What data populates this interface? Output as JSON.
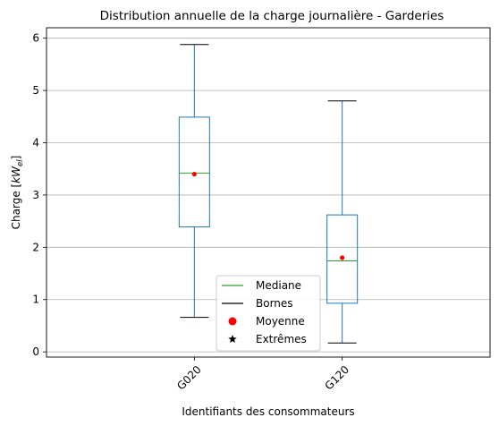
{
  "chart_data": {
    "type": "box",
    "title": "Distribution annuelle de la charge journalière - Garderies",
    "xlabel": "Identifiants des consommateurs",
    "ylabel_prefix": "Charge [",
    "ylabel_var": "kW",
    "ylabel_sub": "el",
    "ylabel_suffix": "]",
    "ylim": [
      -0.1,
      6.2
    ],
    "yticks": [
      0,
      1,
      2,
      3,
      4,
      5,
      6
    ],
    "ytick_labels": [
      "0",
      "1",
      "2",
      "3",
      "4",
      "5",
      "6"
    ],
    "grid": "horizontal",
    "categories": [
      "G020",
      "G120"
    ],
    "boxes": [
      {
        "name": "G020",
        "whislo": 0.66,
        "q1": 2.39,
        "med": 3.42,
        "mean": 3.4,
        "q3": 4.49,
        "whishi": 5.88
      },
      {
        "name": "G120",
        "whislo": 0.17,
        "q1": 0.93,
        "med": 1.74,
        "mean": 1.8,
        "q3": 2.62,
        "whishi": 4.8
      }
    ],
    "legend": {
      "placement": "lower center",
      "entries": [
        {
          "label": "Mediane",
          "marker": "line",
          "color": "#2ca02c"
        },
        {
          "label": "Bornes",
          "marker": "line",
          "color": "#000000"
        },
        {
          "label": "Moyenne",
          "marker": "circle",
          "color": "#ff0000"
        },
        {
          "label": "Extrêmes",
          "marker": "star",
          "color": "#000000"
        }
      ]
    },
    "colors": {
      "box": "#1f77b4",
      "median": "#2ca02c",
      "mean": "#ff0000",
      "cap": "#000000",
      "grid": "#b0b0b0"
    }
  }
}
